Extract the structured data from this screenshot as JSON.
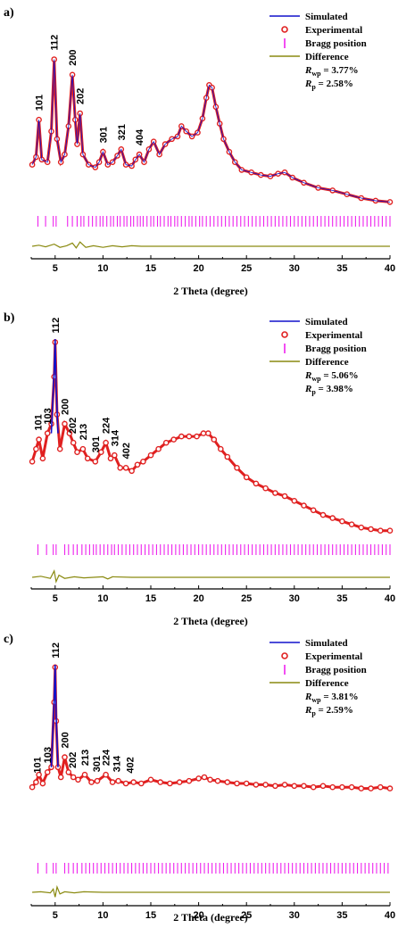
{
  "chart_data": [
    {
      "type": "line",
      "panel_label": "a)",
      "xlabel": "2 Theta (degree)",
      "ylabel": "",
      "xlim": [
        2.5,
        40
      ],
      "xticks": [
        5,
        10,
        15,
        20,
        25,
        30,
        35,
        40
      ],
      "grid": false,
      "legend": {
        "position": "top-right",
        "entries": [
          "Simulated",
          "Experimental",
          "Bragg position",
          "Difference"
        ],
        "rwp_prefix": "R",
        "rwp_sub": "wp",
        "rwp_value": " = 3.77%",
        "rp_prefix": "R",
        "rp_sub": "p",
        "rp_value": "  = 2.58%"
      },
      "colors": {
        "simulated": "#1010cc",
        "experimental": "#e02020",
        "bragg": "#ee22ee",
        "difference": "#8a8a10"
      },
      "peaks": [
        {
          "label": "101",
          "x": 3.3
        },
        {
          "label": "112",
          "x": 4.9
        },
        {
          "label": "200",
          "x": 6.8
        },
        {
          "label": "202",
          "x": 7.6
        },
        {
          "label": "301",
          "x": 10.0
        },
        {
          "label": "321",
          "x": 11.9
        },
        {
          "label": "404",
          "x": 13.8
        }
      ],
      "series": [
        {
          "name": "Experimental",
          "x": [
            2.6,
            3.0,
            3.3,
            3.6,
            4.2,
            4.6,
            4.9,
            5.2,
            5.6,
            6.0,
            6.4,
            6.8,
            7.1,
            7.3,
            7.6,
            7.9,
            8.5,
            9.2,
            9.6,
            10.0,
            10.5,
            11.0,
            11.5,
            11.9,
            12.4,
            13.0,
            13.4,
            13.8,
            14.3,
            14.8,
            15.3,
            15.9,
            16.5,
            17.2,
            17.8,
            18.2,
            18.7,
            19.3,
            19.9,
            20.4,
            20.8,
            21.1,
            21.4,
            21.8,
            22.2,
            22.6,
            23.2,
            23.8,
            24.5,
            25.5,
            26.5,
            27.5,
            28.3,
            29.0,
            29.8,
            31.0,
            32.5,
            34.0,
            35.5,
            37.0,
            38.5,
            40.0
          ],
          "y": [
            0.1,
            0.16,
            0.45,
            0.14,
            0.12,
            0.36,
            0.92,
            0.3,
            0.12,
            0.18,
            0.4,
            0.8,
            0.45,
            0.26,
            0.5,
            0.18,
            0.1,
            0.08,
            0.12,
            0.2,
            0.1,
            0.12,
            0.17,
            0.22,
            0.1,
            0.09,
            0.14,
            0.18,
            0.12,
            0.22,
            0.28,
            0.18,
            0.26,
            0.3,
            0.32,
            0.4,
            0.36,
            0.32,
            0.35,
            0.46,
            0.62,
            0.72,
            0.7,
            0.55,
            0.42,
            0.3,
            0.2,
            0.12,
            0.06,
            0.04,
            0.02,
            0.01,
            0.03,
            0.04,
            0.0,
            -0.04,
            -0.08,
            -0.1,
            -0.13,
            -0.16,
            -0.18,
            -0.19
          ]
        },
        {
          "name": "Difference",
          "x": [
            2.6,
            3.3,
            4.0,
            4.9,
            5.5,
            6.2,
            6.8,
            7.2,
            7.6,
            8.2,
            9.0,
            10.0,
            11.0,
            12.0,
            13.0,
            14.0,
            16.0,
            20.0,
            25.0,
            30.0,
            35.0,
            40.0
          ],
          "y": [
            0.0,
            0.02,
            -0.01,
            0.04,
            -0.02,
            0.01,
            0.06,
            -0.03,
            0.08,
            -0.02,
            0.01,
            -0.02,
            0.01,
            -0.01,
            0.01,
            0.0,
            0.0,
            0.0,
            0.0,
            0.0,
            0.0,
            0.0
          ]
        }
      ],
      "bragg_positions": [
        3.2,
        4.0,
        4.8,
        5.1,
        6.3,
        6.8,
        7.3,
        7.7,
        8.0,
        8.5,
        8.9,
        9.3,
        9.7,
        10.0,
        10.4,
        10.8,
        11.1,
        11.5,
        11.8,
        12.2,
        12.5,
        12.9,
        13.2,
        13.6,
        13.9,
        14.2,
        14.6,
        15.0,
        15.3,
        15.7,
        16.0,
        16.4,
        16.8,
        17.1,
        17.5,
        17.8,
        18.2,
        18.6,
        19.0,
        19.3,
        19.7,
        20.1,
        20.4,
        20.8,
        21.2,
        21.6,
        22.0,
        22.4,
        22.8,
        23.2,
        23.6,
        24.0,
        24.4,
        24.8,
        25.2,
        25.6,
        26.0,
        26.4,
        26.8,
        27.2,
        27.6,
        28.0,
        28.4,
        28.8,
        29.2,
        29.6,
        30.0,
        30.4,
        30.8,
        31.2,
        31.6,
        32.0,
        32.4,
        32.8,
        33.2,
        33.6,
        34.0,
        34.4,
        34.8,
        35.2,
        35.6,
        36.0,
        36.4,
        36.8,
        37.2,
        37.6,
        38.0,
        38.4,
        38.8,
        39.2,
        39.6,
        40.0
      ]
    },
    {
      "type": "line",
      "panel_label": "b)",
      "xlabel": "2 Theta (degree)",
      "ylabel": "",
      "xlim": [
        2.5,
        40
      ],
      "xticks": [
        5,
        10,
        15,
        20,
        25,
        30,
        35,
        40
      ],
      "grid": false,
      "legend": {
        "position": "top-right",
        "entries": [
          "Simulated",
          "Experimental",
          "Bragg position",
          "Difference"
        ],
        "rwp_prefix": "R",
        "rwp_sub": "wp",
        "rwp_value": " = 5.06%",
        "rp_prefix": "R",
        "rp_sub": "p",
        "rp_value": "  = 3.98%"
      },
      "colors": {
        "simulated": "#1010cc",
        "experimental": "#e02020",
        "bragg": "#ee22ee",
        "difference": "#8a8a10"
      },
      "peaks": [
        {
          "label": "101",
          "x": 3.2
        },
        {
          "label": "103",
          "x": 4.2
        },
        {
          "label": "112",
          "x": 5.0
        },
        {
          "label": "200",
          "x": 6.0
        },
        {
          "label": "202",
          "x": 6.8
        },
        {
          "label": "213",
          "x": 7.9
        },
        {
          "label": "301",
          "x": 9.2
        },
        {
          "label": "224",
          "x": 10.3
        },
        {
          "label": "314",
          "x": 11.2
        },
        {
          "label": "402",
          "x": 12.4
        }
      ],
      "series": [
        {
          "name": "Experimental",
          "x": [
            2.6,
            3.0,
            3.3,
            3.7,
            4.2,
            4.6,
            4.9,
            5.0,
            5.2,
            5.5,
            6.0,
            6.5,
            6.9,
            7.3,
            7.9,
            8.4,
            9.2,
            9.8,
            10.3,
            10.8,
            11.2,
            11.8,
            12.4,
            13.0,
            13.6,
            14.2,
            15.0,
            15.8,
            16.6,
            17.4,
            18.2,
            19.0,
            19.8,
            20.5,
            21.0,
            21.6,
            22.3,
            23.0,
            24.0,
            25.0,
            26.0,
            27.0,
            28.0,
            29.0,
            30.0,
            31.0,
            32.0,
            33.0,
            34.0,
            35.0,
            36.0,
            37.0,
            38.0,
            39.0,
            40.0
          ],
          "y": [
            0.22,
            0.3,
            0.36,
            0.24,
            0.4,
            0.46,
            0.76,
            0.98,
            0.52,
            0.3,
            0.46,
            0.4,
            0.34,
            0.28,
            0.3,
            0.24,
            0.22,
            0.28,
            0.34,
            0.24,
            0.26,
            0.18,
            0.18,
            0.16,
            0.2,
            0.22,
            0.26,
            0.3,
            0.34,
            0.36,
            0.38,
            0.38,
            0.38,
            0.4,
            0.4,
            0.36,
            0.3,
            0.25,
            0.18,
            0.12,
            0.08,
            0.05,
            0.02,
            0.0,
            -0.03,
            -0.06,
            -0.09,
            -0.12,
            -0.14,
            -0.16,
            -0.18,
            -0.2,
            -0.21,
            -0.22,
            -0.22
          ]
        },
        {
          "name": "Simulated",
          "x": [
            4.6,
            4.9,
            5.0,
            5.1,
            5.3
          ],
          "y": [
            0.4,
            0.8,
            1.0,
            0.7,
            0.4
          ]
        },
        {
          "name": "Difference",
          "x": [
            2.6,
            3.5,
            4.5,
            4.9,
            5.1,
            5.4,
            6.0,
            7.0,
            8.0,
            10.0,
            10.5,
            11.0,
            13.0,
            15.0,
            20.0,
            25.0,
            30.0,
            35.0,
            40.0
          ],
          "y": [
            0.0,
            0.02,
            -0.02,
            0.12,
            -0.08,
            0.04,
            -0.02,
            0.01,
            -0.01,
            0.01,
            -0.03,
            0.01,
            0.0,
            0.0,
            0.0,
            0.0,
            0.0,
            0.0,
            0.0
          ]
        }
      ],
      "bragg_positions": [
        3.2,
        4.1,
        4.8,
        5.1,
        6.0,
        6.4,
        6.9,
        7.3,
        7.8,
        8.2,
        8.6,
        9.0,
        9.3,
        9.7,
        10.1,
        10.5,
        10.9,
        11.2,
        11.6,
        12.0,
        12.4,
        12.8,
        13.2,
        13.6,
        14.0,
        14.4,
        14.8,
        15.2,
        15.6,
        16.0,
        16.4,
        16.8,
        17.2,
        17.6,
        18.0,
        18.4,
        18.8,
        19.2,
        19.6,
        20.0,
        20.4,
        20.8,
        21.2,
        21.6,
        22.0,
        22.4,
        22.8,
        23.2,
        23.6,
        24.0,
        24.4,
        24.8,
        25.2,
        25.6,
        26.0,
        26.4,
        26.8,
        27.2,
        27.6,
        28.0,
        28.4,
        28.8,
        29.2,
        29.6,
        30.0,
        30.4,
        30.8,
        31.2,
        31.6,
        32.0,
        32.4,
        32.8,
        33.2,
        33.6,
        34.0,
        34.4,
        34.8,
        35.2,
        35.6,
        36.0,
        36.4,
        36.8,
        37.2,
        37.6,
        38.0,
        38.4,
        38.8,
        39.2,
        39.6,
        40.0
      ]
    },
    {
      "type": "line",
      "panel_label": "c)",
      "xlabel": "2 Theta (degree)",
      "ylabel": "",
      "xlim": [
        2.5,
        40
      ],
      "xticks": [
        5,
        10,
        15,
        20,
        25,
        30,
        35,
        40
      ],
      "grid": false,
      "legend": {
        "position": "top-right",
        "entries": [
          "Simulated",
          "Experimental",
          "Bragg position",
          "Difference"
        ],
        "rwp_prefix": "R",
        "rwp_sub": "wp",
        "rwp_value": " = 3.81%",
        "rp_prefix": "R",
        "rp_sub": "p",
        "rp_value": "  = 2.59%"
      },
      "colors": {
        "simulated": "#1010cc",
        "experimental": "#e02020",
        "bragg": "#ee22ee",
        "difference": "#8a8a10"
      },
      "peaks": [
        {
          "label": "101",
          "x": 3.1
        },
        {
          "label": "103",
          "x": 4.2
        },
        {
          "label": "112",
          "x": 5.0
        },
        {
          "label": "200",
          "x": 6.0
        },
        {
          "label": "202",
          "x": 6.8
        },
        {
          "label": "213",
          "x": 8.1
        },
        {
          "label": "301",
          "x": 9.3
        },
        {
          "label": "224",
          "x": 10.3
        },
        {
          "label": "314",
          "x": 11.4
        },
        {
          "label": "402",
          "x": 12.8
        }
      ],
      "series": [
        {
          "name": "Experimental",
          "x": [
            2.6,
            3.0,
            3.3,
            3.7,
            4.2,
            4.6,
            4.9,
            5.0,
            5.1,
            5.3,
            5.6,
            6.0,
            6.4,
            6.9,
            7.4,
            8.1,
            8.8,
            9.4,
            10.3,
            11.0,
            11.6,
            12.4,
            13.2,
            14.0,
            15.0,
            16.0,
            17.0,
            18.0,
            19.0,
            20.0,
            20.6,
            21.2,
            22.0,
            23.0,
            24.0,
            25.0,
            26.0,
            27.0,
            28.0,
            29.0,
            30.0,
            31.0,
            32.0,
            33.0,
            34.0,
            35.0,
            36.0,
            37.0,
            38.0,
            39.0,
            40.0
          ],
          "y": [
            0.02,
            0.06,
            0.12,
            0.05,
            0.14,
            0.18,
            0.7,
            0.98,
            0.55,
            0.18,
            0.1,
            0.26,
            0.14,
            0.1,
            0.08,
            0.12,
            0.06,
            0.07,
            0.12,
            0.06,
            0.07,
            0.05,
            0.06,
            0.05,
            0.08,
            0.06,
            0.05,
            0.06,
            0.07,
            0.09,
            0.1,
            0.08,
            0.07,
            0.06,
            0.05,
            0.05,
            0.04,
            0.04,
            0.03,
            0.04,
            0.03,
            0.03,
            0.02,
            0.03,
            0.02,
            0.02,
            0.02,
            0.01,
            0.01,
            0.02,
            0.01
          ]
        },
        {
          "name": "Simulated",
          "x": [
            4.6,
            4.9,
            5.0,
            5.1,
            5.3
          ],
          "y": [
            0.18,
            0.72,
            1.0,
            0.6,
            0.18
          ]
        },
        {
          "name": "Difference",
          "x": [
            2.6,
            3.5,
            4.5,
            4.8,
            5.0,
            5.2,
            5.5,
            6.0,
            7.0,
            8.0,
            10.0,
            13.0,
            15.0,
            20.0,
            25.0,
            30.0,
            35.0,
            40.0
          ],
          "y": [
            0.0,
            0.01,
            -0.01,
            0.06,
            -0.09,
            0.1,
            -0.03,
            0.01,
            -0.01,
            0.01,
            0.0,
            0.0,
            0.0,
            0.0,
            0.0,
            0.0,
            0.0,
            0.0
          ]
        }
      ],
      "bragg_positions": [
        3.2,
        4.1,
        4.8,
        5.1,
        6.0,
        6.4,
        6.9,
        7.3,
        7.8,
        8.2,
        8.6,
        9.0,
        9.4,
        9.8,
        10.2,
        10.6,
        11.0,
        11.4,
        11.8,
        12.2,
        12.6,
        13.0,
        13.4,
        13.8,
        14.2,
        14.6,
        15.0,
        15.4,
        15.8,
        16.2,
        16.6,
        17.0,
        17.4,
        17.8,
        18.2,
        18.6,
        19.0,
        19.4,
        19.8,
        20.2,
        20.6,
        21.0,
        21.4,
        21.8,
        22.2,
        22.6,
        23.0,
        23.4,
        23.8,
        24.2,
        24.6,
        25.0,
        25.4,
        25.8,
        26.2,
        26.6,
        27.0,
        27.4,
        27.8,
        28.2,
        28.6,
        29.0,
        29.4,
        29.8,
        30.2,
        30.6,
        31.0,
        31.4,
        31.8,
        32.2,
        32.6,
        33.0,
        33.4,
        33.8,
        34.2,
        34.6,
        35.0,
        35.4,
        35.8,
        36.2,
        36.6,
        37.0,
        37.4,
        37.8,
        38.2,
        38.6,
        39.0,
        39.4,
        39.8
      ]
    }
  ]
}
